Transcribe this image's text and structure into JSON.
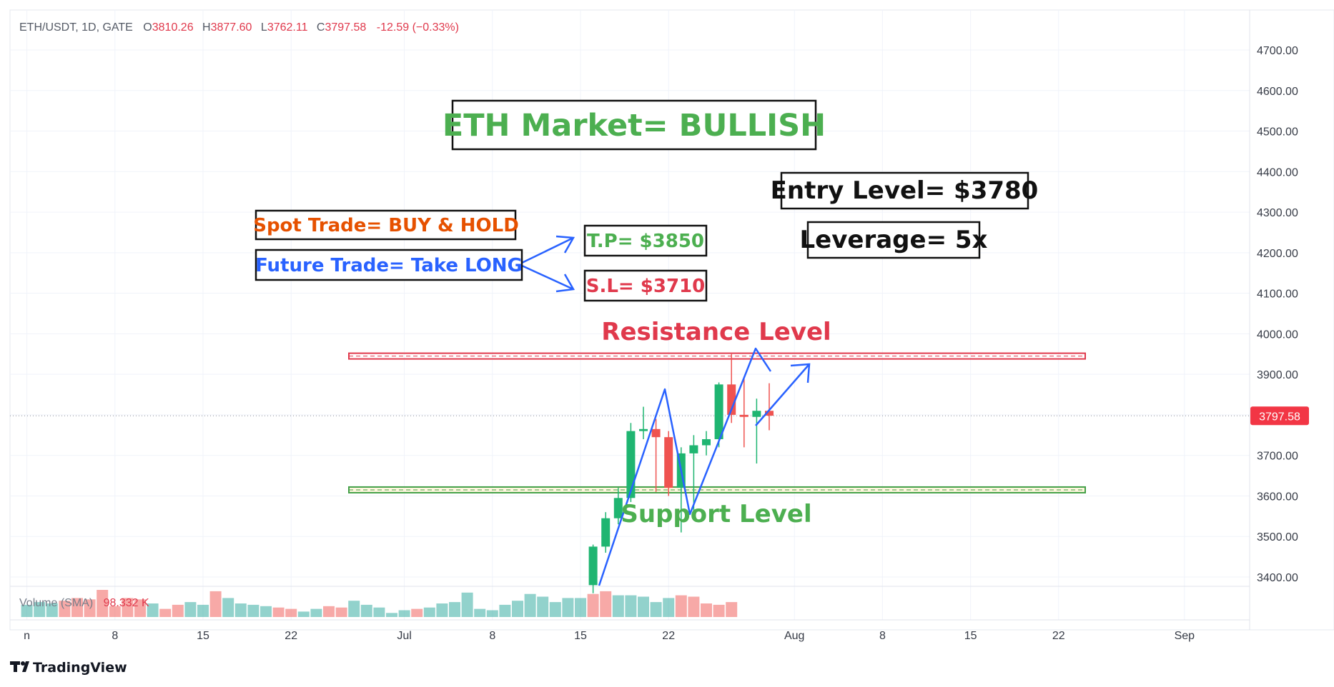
{
  "header": {
    "symbol": "ETH/USDT, 1D, GATE",
    "o_label": "O",
    "o_value": "3810.26",
    "h_label": "H",
    "h_value": "3877.60",
    "l_label": "L",
    "l_value": "3762.11",
    "c_label": "C",
    "c_value": "3797.58",
    "change": "-12.59 (−0.33%)"
  },
  "volume": {
    "label": "Volume (SMA)",
    "value": "98.332 K"
  },
  "price_tag": "3797.58",
  "logo": "TradingView",
  "annotations": {
    "title": "ETH Market= BULLISH",
    "entry": "Entry Level= $3780",
    "leverage": "Leverage= 5x",
    "spot": "Spot Trade= BUY & HOLD",
    "future": "Future Trade= Take LONG",
    "tp": "T.P= $3850",
    "sl": "S.L= $3710",
    "resistance": "Resistance Level",
    "support": "Support Level"
  },
  "colors": {
    "up": "#26a69a",
    "up_body": "#1fb571",
    "down": "#ef5350",
    "green_text": "#4caf50",
    "red_text": "#e0394c",
    "orange_text": "#e65100",
    "blue": "#2962ff",
    "grid": "#f0f3fa"
  },
  "chart_data": {
    "type": "candlestick",
    "y_ticks": [
      3400,
      3500,
      3600,
      3700,
      3800,
      3900,
      4000,
      4100,
      4200,
      4300,
      4400,
      4500,
      4600,
      4700
    ],
    "y_tick_labels": [
      "3400.00",
      "3500.00",
      "3600.00",
      "3700.00",
      "3800.00",
      "3900.00",
      "4000.00",
      "4100.00",
      "4200.00",
      "4300.00",
      "4400.00",
      "4500.00",
      "4600.00",
      "4700.00"
    ],
    "x_ticks": [
      {
        "label": "n",
        "day": 0
      },
      {
        "label": "8",
        "day": 7
      },
      {
        "label": "15",
        "day": 14
      },
      {
        "label": "22",
        "day": 21
      },
      {
        "label": "Jul",
        "day": 30
      },
      {
        "label": "8",
        "day": 37
      },
      {
        "label": "15",
        "day": 44
      },
      {
        "label": "22",
        "day": 51
      },
      {
        "label": "Aug",
        "day": 61
      },
      {
        "label": "8",
        "day": 68
      },
      {
        "label": "15",
        "day": 75
      },
      {
        "label": "22",
        "day": 82
      },
      {
        "label": "Sep",
        "day": 92
      }
    ],
    "candles": [
      {
        "day": 45,
        "o": 3380,
        "h": 3480,
        "l": 3360,
        "c": 3475
      },
      {
        "day": 46,
        "o": 3475,
        "h": 3560,
        "l": 3460,
        "c": 3545
      },
      {
        "day": 47,
        "o": 3545,
        "h": 3620,
        "l": 3530,
        "c": 3595
      },
      {
        "day": 48,
        "o": 3595,
        "h": 3780,
        "l": 3585,
        "c": 3760
      },
      {
        "day": 49,
        "o": 3760,
        "h": 3820,
        "l": 3740,
        "c": 3765
      },
      {
        "day": 50,
        "o": 3765,
        "h": 3790,
        "l": 3610,
        "c": 3745
      },
      {
        "day": 51,
        "o": 3745,
        "h": 3760,
        "l": 3600,
        "c": 3620
      },
      {
        "day": 52,
        "o": 3620,
        "h": 3720,
        "l": 3510,
        "c": 3705
      },
      {
        "day": 53,
        "o": 3705,
        "h": 3750,
        "l": 3560,
        "c": 3725
      },
      {
        "day": 54,
        "o": 3725,
        "h": 3760,
        "l": 3700,
        "c": 3740
      },
      {
        "day": 55,
        "o": 3740,
        "h": 3880,
        "l": 3720,
        "c": 3875
      },
      {
        "day": 56,
        "o": 3875,
        "h": 3950,
        "l": 3780,
        "c": 3800
      },
      {
        "day": 57,
        "o": 3800,
        "h": 3890,
        "l": 3720,
        "c": 3795
      },
      {
        "day": 58,
        "o": 3795,
        "h": 3840,
        "l": 3680,
        "c": 3810
      },
      {
        "day": 59,
        "o": 3810,
        "h": 3878,
        "l": 3762,
        "c": 3798
      }
    ],
    "volume_bars": [
      {
        "day": 0,
        "v": 0.45,
        "up": true
      },
      {
        "day": 1,
        "v": 0.55,
        "up": true
      },
      {
        "day": 2,
        "v": 0.5,
        "up": true
      },
      {
        "day": 3,
        "v": 0.6,
        "up": false
      },
      {
        "day": 4,
        "v": 0.7,
        "up": false
      },
      {
        "day": 5,
        "v": 0.65,
        "up": false
      },
      {
        "day": 6,
        "v": 1.0,
        "up": false
      },
      {
        "day": 7,
        "v": 0.4,
        "up": false
      },
      {
        "day": 8,
        "v": 0.7,
        "up": false
      },
      {
        "day": 9,
        "v": 0.65,
        "up": false
      },
      {
        "day": 10,
        "v": 0.5,
        "up": true
      },
      {
        "day": 11,
        "v": 0.3,
        "up": false
      },
      {
        "day": 12,
        "v": 0.45,
        "up": false
      },
      {
        "day": 13,
        "v": 0.55,
        "up": true
      },
      {
        "day": 14,
        "v": 0.45,
        "up": true
      },
      {
        "day": 15,
        "v": 0.95,
        "up": false
      },
      {
        "day": 16,
        "v": 0.7,
        "up": true
      },
      {
        "day": 17,
        "v": 0.5,
        "up": true
      },
      {
        "day": 18,
        "v": 0.45,
        "up": true
      },
      {
        "day": 19,
        "v": 0.4,
        "up": true
      },
      {
        "day": 20,
        "v": 0.35,
        "up": false
      },
      {
        "day": 21,
        "v": 0.3,
        "up": false
      },
      {
        "day": 22,
        "v": 0.2,
        "up": true
      },
      {
        "day": 23,
        "v": 0.3,
        "up": true
      },
      {
        "day": 24,
        "v": 0.4,
        "up": false
      },
      {
        "day": 25,
        "v": 0.35,
        "up": false
      },
      {
        "day": 26,
        "v": 0.6,
        "up": true
      },
      {
        "day": 27,
        "v": 0.45,
        "up": true
      },
      {
        "day": 28,
        "v": 0.35,
        "up": true
      },
      {
        "day": 29,
        "v": 0.15,
        "up": true
      },
      {
        "day": 30,
        "v": 0.25,
        "up": true
      },
      {
        "day": 31,
        "v": 0.3,
        "up": false
      },
      {
        "day": 32,
        "v": 0.35,
        "up": true
      },
      {
        "day": 33,
        "v": 0.5,
        "up": true
      },
      {
        "day": 34,
        "v": 0.55,
        "up": true
      },
      {
        "day": 35,
        "v": 0.9,
        "up": true
      },
      {
        "day": 36,
        "v": 0.3,
        "up": true
      },
      {
        "day": 37,
        "v": 0.25,
        "up": true
      },
      {
        "day": 38,
        "v": 0.45,
        "up": true
      },
      {
        "day": 39,
        "v": 0.6,
        "up": true
      },
      {
        "day": 40,
        "v": 0.85,
        "up": true
      },
      {
        "day": 41,
        "v": 0.75,
        "up": true
      },
      {
        "day": 42,
        "v": 0.55,
        "up": true
      },
      {
        "day": 43,
        "v": 0.7,
        "up": true
      },
      {
        "day": 44,
        "v": 0.7,
        "up": true
      },
      {
        "day": 45,
        "v": 0.85,
        "up": false
      },
      {
        "day": 46,
        "v": 0.95,
        "up": false
      },
      {
        "day": 47,
        "v": 0.8,
        "up": true
      },
      {
        "day": 48,
        "v": 0.8,
        "up": true
      },
      {
        "day": 49,
        "v": 0.75,
        "up": true
      },
      {
        "day": 50,
        "v": 0.55,
        "up": true
      },
      {
        "day": 51,
        "v": 0.7,
        "up": true
      },
      {
        "day": 52,
        "v": 0.8,
        "up": false
      },
      {
        "day": 53,
        "v": 0.75,
        "up": false
      },
      {
        "day": 54,
        "v": 0.5,
        "up": false
      },
      {
        "day": 55,
        "v": 0.45,
        "up": false
      },
      {
        "day": 56,
        "v": 0.55,
        "up": false
      }
    ],
    "resistance_level": 3945,
    "support_level": 3615,
    "current_price": 3797.58,
    "ylim": [
      3370,
      4750
    ],
    "xlim": [
      -1,
      98
    ]
  }
}
